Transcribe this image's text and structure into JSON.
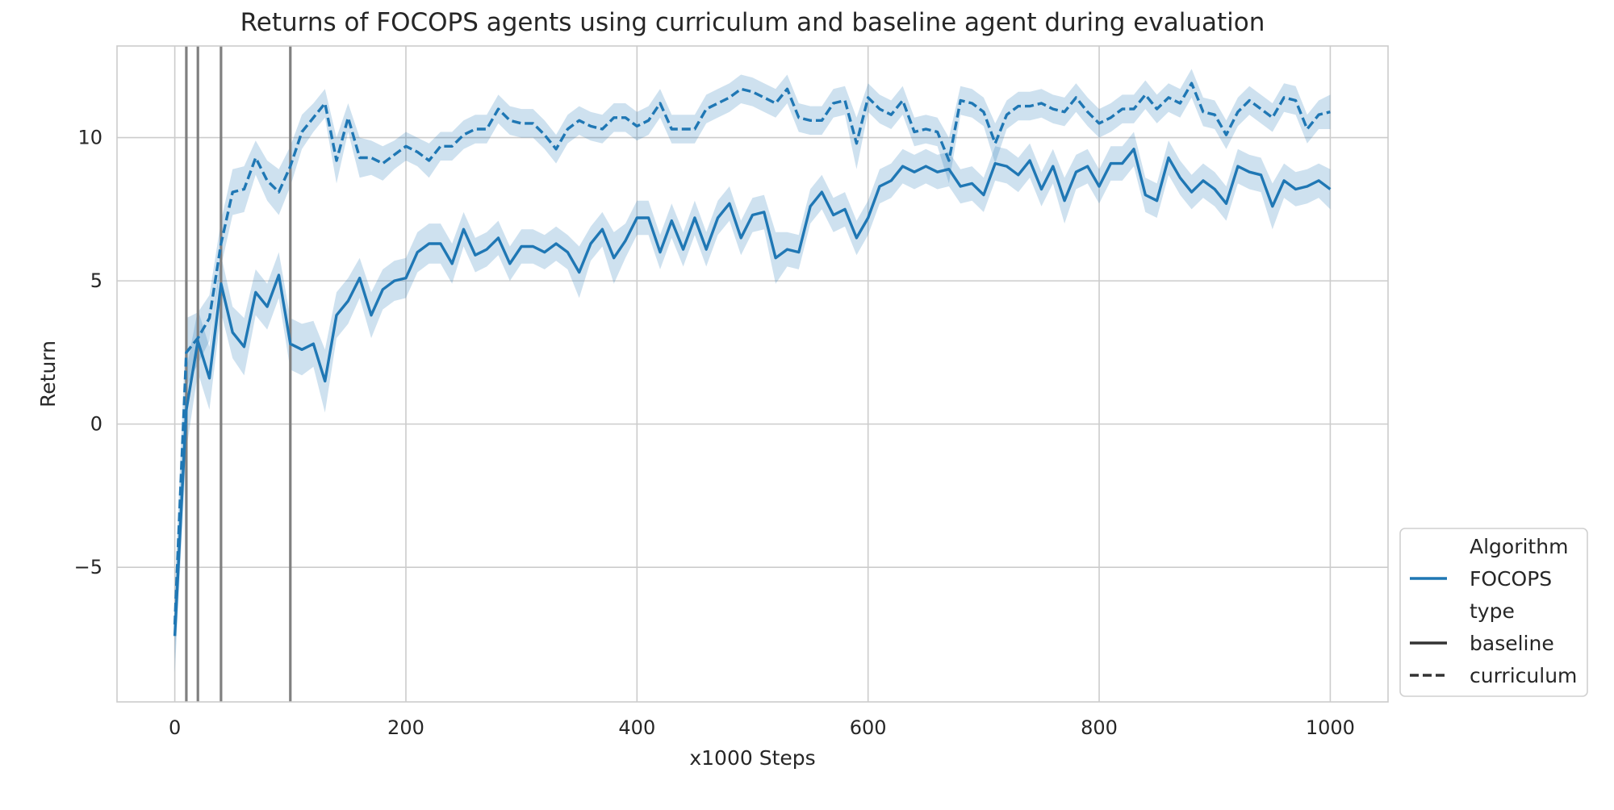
{
  "chart_data": {
    "type": "line",
    "title": "Returns of FOCOPS agents using curriculum and baseline agent during evaluation",
    "xlabel": "x1000 Steps",
    "ylabel": "Return",
    "xlim": [
      -50,
      1050
    ],
    "ylim": [
      -9.7,
      13.2
    ],
    "x_ticks": [
      0,
      200,
      400,
      600,
      800,
      1000
    ],
    "x_tick_labels": [
      "0",
      "200",
      "400",
      "600",
      "800",
      "1000"
    ],
    "y_ticks": [
      -5,
      0,
      5,
      10
    ],
    "y_tick_labels": [
      "−5",
      "0",
      "5",
      "10"
    ],
    "grid": true,
    "vertical_markers": [
      10,
      20,
      40,
      100
    ],
    "legend": {
      "placement": "outside-right-bottom",
      "entries": [
        {
          "label": "Algorithm",
          "kind": "header"
        },
        {
          "label": "FOCOPS",
          "kind": "hue",
          "color": "#1f77b4"
        },
        {
          "label": "type",
          "kind": "header"
        },
        {
          "label": "baseline",
          "kind": "style",
          "dash": "solid"
        },
        {
          "label": "curriculum",
          "kind": "style",
          "dash": "dashed"
        }
      ]
    },
    "colors": {
      "line": "#1f77b4",
      "band": "#1f77b4",
      "marker": "#808080",
      "grid": "#cccccc",
      "frame": "#cccccc"
    },
    "x": [
      0,
      10,
      20,
      30,
      40,
      50,
      60,
      70,
      80,
      90,
      100,
      110,
      120,
      130,
      140,
      150,
      160,
      170,
      180,
      190,
      200,
      210,
      220,
      230,
      240,
      250,
      260,
      270,
      280,
      290,
      300,
      310,
      320,
      330,
      340,
      350,
      360,
      370,
      380,
      390,
      400,
      410,
      420,
      430,
      440,
      450,
      460,
      470,
      480,
      490,
      500,
      510,
      520,
      530,
      540,
      550,
      560,
      570,
      580,
      590,
      600,
      610,
      620,
      630,
      640,
      650,
      660,
      670,
      680,
      690,
      700,
      710,
      720,
      730,
      740,
      750,
      760,
      770,
      780,
      790,
      800,
      810,
      820,
      830,
      840,
      850,
      860,
      870,
      880,
      890,
      900,
      910,
      920,
      930,
      940,
      950,
      960,
      970,
      980,
      990,
      1000
    ],
    "series": [
      {
        "name": "baseline",
        "line_style": "solid",
        "values": [
          -7.4,
          0.5,
          2.9,
          1.6,
          4.9,
          3.2,
          2.7,
          4.6,
          4.1,
          5.2,
          2.8,
          2.6,
          2.8,
          1.5,
          3.8,
          4.3,
          5.1,
          3.8,
          4.7,
          5.0,
          5.1,
          6.0,
          6.3,
          6.3,
          5.6,
          6.8,
          5.9,
          6.1,
          6.5,
          5.6,
          6.2,
          6.2,
          6.0,
          6.3,
          6.0,
          5.3,
          6.3,
          6.8,
          5.8,
          6.4,
          7.2,
          7.2,
          6.0,
          7.1,
          6.1,
          7.2,
          6.1,
          7.2,
          7.7,
          6.5,
          7.3,
          7.4,
          5.8,
          6.1,
          6.0,
          7.6,
          8.1,
          7.3,
          7.5,
          6.5,
          7.2,
          8.3,
          8.5,
          9.0,
          8.8,
          9.0,
          8.8,
          8.9,
          8.3,
          8.4,
          8.0,
          9.1,
          9.0,
          8.7,
          9.2,
          8.2,
          9.0,
          7.8,
          8.8,
          9.0,
          8.3,
          9.1,
          9.1,
          9.6,
          8.0,
          7.8,
          9.3,
          8.6,
          8.1,
          8.5,
          8.2,
          7.7,
          9.0,
          8.8,
          8.7,
          7.6,
          8.5,
          8.2,
          8.3,
          8.5,
          8.2
        ],
        "ci_half_width": [
          1.3,
          1.4,
          1.1,
          1.1,
          1.0,
          0.9,
          1.0,
          0.8,
          0.8,
          0.8,
          0.9,
          0.9,
          0.8,
          1.1,
          0.8,
          0.8,
          0.7,
          0.8,
          0.7,
          0.7,
          0.7,
          0.7,
          0.7,
          0.7,
          0.7,
          0.6,
          0.6,
          0.6,
          0.6,
          0.6,
          0.6,
          0.6,
          0.6,
          0.6,
          0.6,
          0.9,
          0.6,
          0.6,
          0.9,
          0.6,
          0.6,
          0.6,
          0.6,
          0.6,
          0.6,
          0.6,
          0.6,
          0.6,
          0.6,
          0.6,
          0.6,
          0.6,
          0.9,
          0.6,
          0.6,
          0.6,
          0.6,
          0.6,
          0.6,
          0.6,
          0.6,
          0.6,
          0.6,
          0.6,
          0.6,
          0.6,
          0.6,
          0.6,
          0.6,
          0.6,
          0.6,
          0.6,
          0.6,
          0.6,
          0.6,
          0.6,
          0.6,
          0.8,
          0.6,
          0.6,
          0.6,
          0.6,
          0.6,
          0.6,
          0.6,
          0.6,
          0.6,
          0.6,
          0.6,
          0.6,
          0.6,
          0.6,
          0.6,
          0.6,
          0.6,
          0.8,
          0.6,
          0.6,
          0.6,
          0.6,
          0.7
        ]
      },
      {
        "name": "curriculum",
        "line_style": "dashed",
        "values": [
          -7.0,
          2.5,
          3.0,
          3.7,
          6.3,
          8.1,
          8.2,
          9.3,
          8.5,
          8.1,
          9.0,
          10.2,
          10.7,
          11.2,
          9.2,
          10.7,
          9.3,
          9.3,
          9.1,
          9.4,
          9.7,
          9.5,
          9.2,
          9.7,
          9.7,
          10.1,
          10.3,
          10.3,
          11.0,
          10.6,
          10.5,
          10.5,
          10.1,
          9.6,
          10.3,
          10.6,
          10.4,
          10.3,
          10.7,
          10.7,
          10.4,
          10.6,
          11.2,
          10.3,
          10.3,
          10.3,
          11.0,
          11.2,
          11.4,
          11.7,
          11.6,
          11.4,
          11.2,
          11.7,
          10.7,
          10.6,
          10.6,
          11.2,
          11.3,
          9.8,
          11.4,
          11.0,
          10.8,
          11.3,
          10.2,
          10.3,
          10.2,
          9.2,
          11.3,
          11.2,
          10.9,
          9.8,
          10.8,
          11.1,
          11.1,
          11.2,
          11.0,
          10.9,
          11.4,
          10.9,
          10.5,
          10.7,
          11.0,
          11.0,
          11.5,
          11.0,
          11.4,
          11.2,
          11.9,
          10.9,
          10.8,
          10.1,
          10.9,
          11.3,
          11.0,
          10.7,
          11.4,
          11.3,
          10.3,
          10.8,
          10.9
        ],
        "ci_half_width": [
          1.2,
          1.2,
          0.9,
          0.8,
          0.8,
          0.8,
          0.8,
          0.6,
          0.7,
          0.8,
          0.7,
          0.6,
          0.5,
          0.5,
          0.8,
          0.5,
          0.7,
          0.6,
          0.6,
          0.5,
          0.5,
          0.5,
          0.6,
          0.5,
          0.5,
          0.5,
          0.5,
          0.5,
          0.5,
          0.5,
          0.5,
          0.5,
          0.5,
          0.5,
          0.5,
          0.5,
          0.5,
          0.5,
          0.5,
          0.5,
          0.5,
          0.5,
          0.5,
          0.5,
          0.5,
          0.5,
          0.5,
          0.5,
          0.5,
          0.5,
          0.5,
          0.5,
          0.5,
          0.5,
          0.5,
          0.5,
          0.5,
          0.5,
          0.5,
          0.9,
          0.5,
          0.5,
          0.5,
          0.5,
          0.5,
          0.5,
          0.5,
          0.8,
          0.5,
          0.5,
          0.5,
          0.7,
          0.5,
          0.5,
          0.5,
          0.5,
          0.5,
          0.5,
          0.5,
          0.5,
          0.5,
          0.5,
          0.5,
          0.5,
          0.5,
          0.5,
          0.5,
          0.5,
          0.5,
          0.5,
          0.5,
          0.5,
          0.5,
          0.5,
          0.5,
          0.5,
          0.5,
          0.5,
          0.5,
          0.5,
          0.6
        ]
      }
    ]
  }
}
